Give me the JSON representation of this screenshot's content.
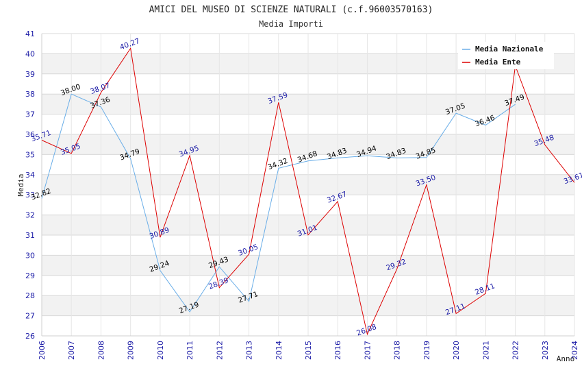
{
  "chart_data": {
    "type": "line",
    "title": "AMICI DEL MUSEO DI SCIENZE NATURALI (c.f.96003570163)",
    "subtitle": "Media Importi",
    "xlabel": "Anno",
    "ylabel": "Media",
    "x": [
      2006,
      2007,
      2008,
      2009,
      2010,
      2011,
      2012,
      2013,
      2014,
      2015,
      2016,
      2017,
      2018,
      2019,
      2020,
      2021,
      2022,
      2023,
      2024
    ],
    "ylim": [
      26,
      41
    ],
    "yticks": [
      26,
      27,
      28,
      29,
      30,
      31,
      32,
      33,
      34,
      35,
      36,
      37,
      38,
      39,
      40,
      41
    ],
    "grid": true,
    "legend_position": "top-right",
    "series": [
      {
        "name": "Media Nazionale",
        "color": "#6aaee8",
        "label_color": "#000000",
        "values": [
          32.82,
          38.0,
          37.36,
          34.79,
          29.24,
          27.19,
          29.43,
          27.71,
          34.32,
          34.68,
          34.83,
          34.94,
          34.83,
          34.85,
          37.05,
          36.46,
          37.49,
          null,
          null
        ],
        "labels": [
          "32.82",
          "38.00",
          "37.36",
          "34.79",
          "29.24",
          "27.19",
          "29.43",
          "27.71",
          "34.32",
          "34.68",
          "34.83",
          "34.94",
          "34.83",
          "34.85",
          "37.05",
          "36.46",
          "37.49",
          null,
          null
        ]
      },
      {
        "name": "Media Ente",
        "color": "#dd0000",
        "label_color": "#1a1aa6",
        "values": [
          35.71,
          35.05,
          38.07,
          40.27,
          30.89,
          34.95,
          28.39,
          30.05,
          37.59,
          31.01,
          32.67,
          26.08,
          29.32,
          33.5,
          27.11,
          28.11,
          39.4,
          35.48,
          33.61
        ],
        "labels": [
          "35.71",
          "35.05",
          "38.07",
          "40.27",
          "30.89",
          "34.95",
          "28.39",
          "30.05",
          "37.59",
          "31.01",
          "32.67",
          "26.08",
          "29.32",
          "33.50",
          "27.11",
          "28.11",
          null,
          "35.48",
          "33.61"
        ]
      }
    ]
  }
}
